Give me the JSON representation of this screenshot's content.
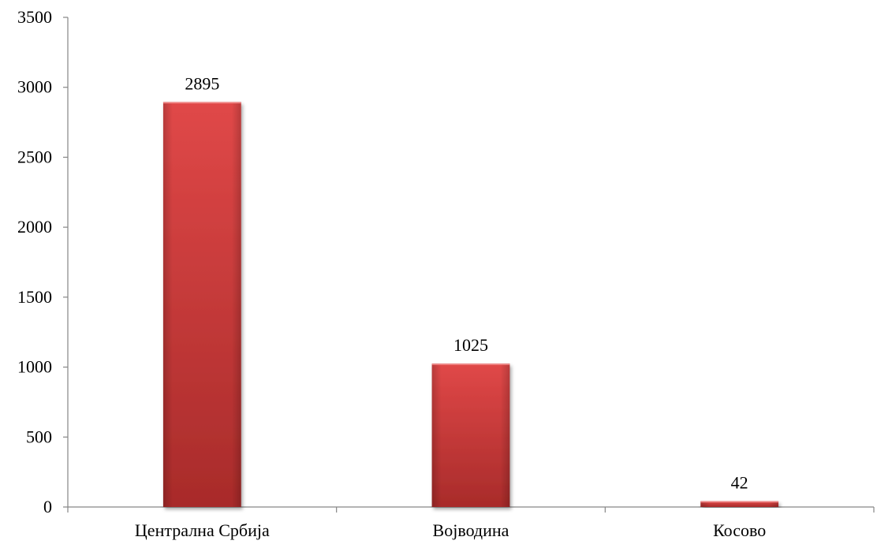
{
  "chart_data": {
    "type": "bar",
    "title": "",
    "xlabel": "",
    "ylabel": "",
    "categories": [
      "Централна Србија",
      "Војводина",
      "Косово"
    ],
    "values": [
      2895,
      1025,
      42
    ],
    "data_labels": [
      "2895",
      "1025",
      "42"
    ],
    "ylim": [
      0,
      3500
    ],
    "y_ticks": [
      0,
      500,
      1000,
      1500,
      2000,
      2500,
      3000,
      3500
    ],
    "y_tick_labels": [
      "0",
      "500",
      "1000",
      "1500",
      "2000",
      "2500",
      "3000",
      "3500"
    ],
    "grid": false,
    "legend": "none",
    "bar_color": "#d9403f",
    "bar_color_dark": "#a82b2a"
  }
}
